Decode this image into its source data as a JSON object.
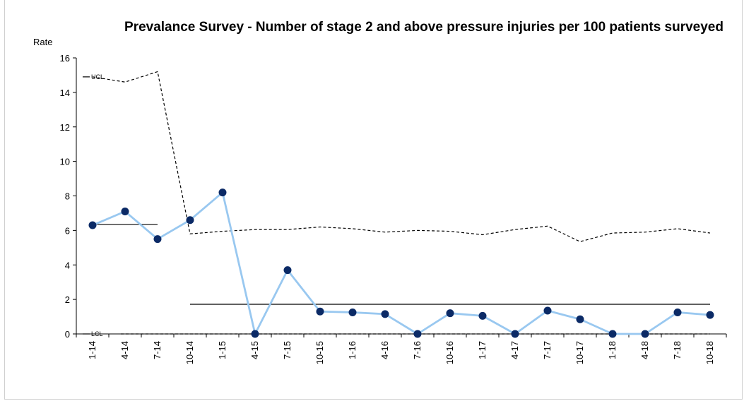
{
  "chart_data": {
    "type": "line",
    "title": "Prevalance Survey - Number of stage 2 and above pressure injuries per 100 patients surveyed",
    "ylabel": "Rate",
    "xlabel": "",
    "ylim": [
      0,
      16
    ],
    "yticks": [
      "0",
      "2",
      "4",
      "6",
      "8",
      "10",
      "12",
      "14",
      "16"
    ],
    "categories": [
      "1-14",
      "4-14",
      "7-14",
      "10-14",
      "1-15",
      "4-15",
      "7-15",
      "10-15",
      "1-16",
      "4-16",
      "7-16",
      "10-16",
      "1-17",
      "4-17",
      "7-17",
      "10-17",
      "1-18",
      "4-18",
      "7-18",
      "10-18"
    ],
    "series": [
      {
        "values": [
          6.3,
          7.1,
          5.5,
          6.6,
          8.2,
          0,
          3.7,
          1.3,
          1.25,
          1.15,
          0,
          1.2,
          1.05,
          0,
          1.35,
          0.85,
          0,
          0,
          1.25,
          1.1
        ],
        "color": "#99c8f0",
        "marker_color": "#0b2a66"
      }
    ],
    "ucl": {
      "label": "UCL",
      "values": [
        14.9,
        14.6,
        15.2,
        5.8,
        5.95,
        6.05,
        6.05,
        6.2,
        6.1,
        5.9,
        6.0,
        5.95,
        5.75,
        6.05,
        6.25,
        5.35,
        5.85,
        5.9,
        6.1,
        5.85
      ]
    },
    "lcl": {
      "label": "LCL",
      "values": [
        0,
        0,
        0,
        0,
        0,
        0,
        0,
        0,
        0,
        0,
        0,
        0,
        0,
        0,
        0,
        0,
        0,
        0,
        0,
        0
      ]
    },
    "center_lines": [
      {
        "from": "1-14",
        "to": "7-14",
        "value": 6.35
      },
      {
        "from": "10-14",
        "to": "10-18",
        "value": 1.72
      }
    ],
    "grid": false,
    "legend": "none"
  }
}
